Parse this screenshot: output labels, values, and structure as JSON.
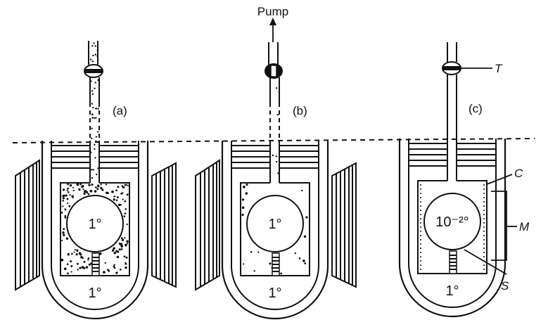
{
  "panels": [
    {
      "id": "a",
      "label": "(a)",
      "inner_temp": "1°",
      "outer_temp": "1°",
      "valve": "open",
      "magnets": true,
      "gas": "dense"
    },
    {
      "id": "b",
      "label": "(b)",
      "inner_temp": "1°",
      "outer_temp": "1°",
      "valve": "closed",
      "magnets": true,
      "gas": "sparse",
      "pump_label": "Pump"
    },
    {
      "id": "c",
      "label": "(c)",
      "inner_temp": "10⁻²°",
      "outer_temp": "1°",
      "valve": "open",
      "magnets": false,
      "gas": "none",
      "callouts": {
        "T": "T",
        "C": "C",
        "M": "M",
        "S": "S"
      }
    }
  ],
  "colors": {
    "ink": "#111111",
    "background": "#ffffff"
  }
}
